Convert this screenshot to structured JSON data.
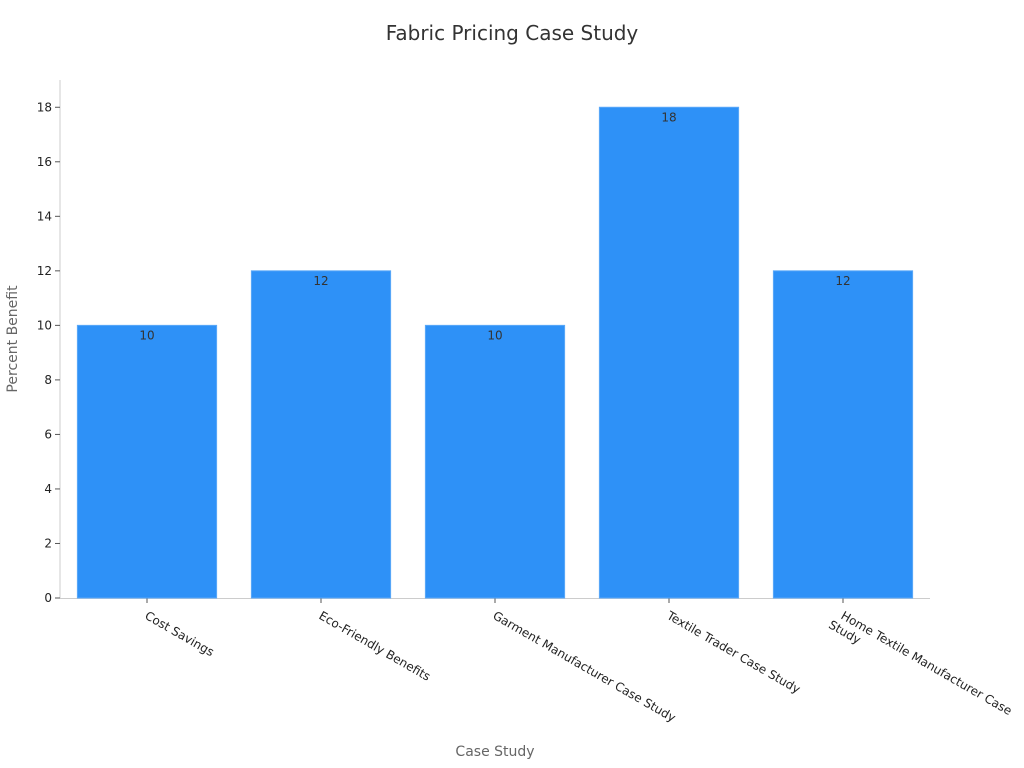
{
  "chart_data": {
    "type": "bar",
    "title": "Fabric Pricing Case Study",
    "x_label": "Case Study",
    "y_label": "Percent Benefit",
    "categories": [
      "Cost Savings",
      "Eco-Friendly Benefits",
      "Garment Manufacturer Case Study",
      "Textile Trader Case Study",
      "Home Textile Manufacturer Case Study"
    ],
    "values": [
      10,
      12,
      10,
      18,
      12
    ],
    "color": "#2e91f7",
    "ylim": [
      0,
      19
    ],
    "yticks": [
      0,
      2,
      4,
      6,
      8,
      10,
      12,
      14,
      16,
      18
    ],
    "grid": false
  }
}
